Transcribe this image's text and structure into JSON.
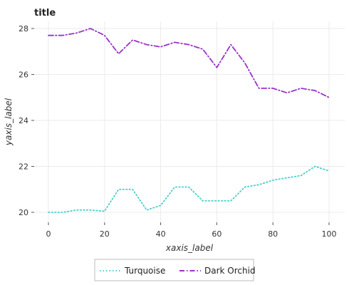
{
  "chart_data": {
    "type": "line",
    "title": "title",
    "xlabel": "xaxis_label",
    "ylabel": "yaxis_label",
    "xlim": [
      0,
      100
    ],
    "ylim": [
      20,
      28
    ],
    "x_ticks": [
      0,
      20,
      40,
      60,
      80,
      100
    ],
    "y_ticks": [
      20,
      22,
      24,
      26,
      28
    ],
    "grid": true,
    "legend": {
      "placement": "bottom",
      "entries": [
        "Turquoise",
        "Dark Orchid"
      ]
    },
    "series": [
      {
        "name": "Turquoise",
        "color": "#48d1cc",
        "line_style": "dotted",
        "x": [
          0,
          5,
          10,
          15,
          20,
          25,
          30,
          35,
          40,
          45,
          50,
          55,
          60,
          65,
          70,
          75,
          80,
          85,
          90,
          95,
          100
        ],
        "y": [
          20.0,
          20.0,
          20.1,
          20.1,
          20.05,
          21.0,
          21.0,
          20.1,
          20.3,
          21.1,
          21.1,
          20.5,
          20.5,
          20.5,
          21.1,
          21.2,
          21.4,
          21.5,
          21.6,
          22.0,
          21.8
        ]
      },
      {
        "name": "Dark Orchid",
        "color": "#9932cc",
        "line_style": "dashdot",
        "x": [
          0,
          5,
          10,
          15,
          20,
          25,
          30,
          35,
          40,
          45,
          50,
          55,
          60,
          65,
          70,
          75,
          80,
          85,
          90,
          95,
          100
        ],
        "y": [
          27.7,
          27.7,
          27.8,
          28.0,
          27.7,
          26.9,
          27.5,
          27.3,
          27.2,
          27.4,
          27.3,
          27.1,
          26.3,
          27.3,
          26.5,
          25.4,
          25.4,
          25.2,
          25.4,
          25.3,
          25.0
        ]
      }
    ]
  }
}
